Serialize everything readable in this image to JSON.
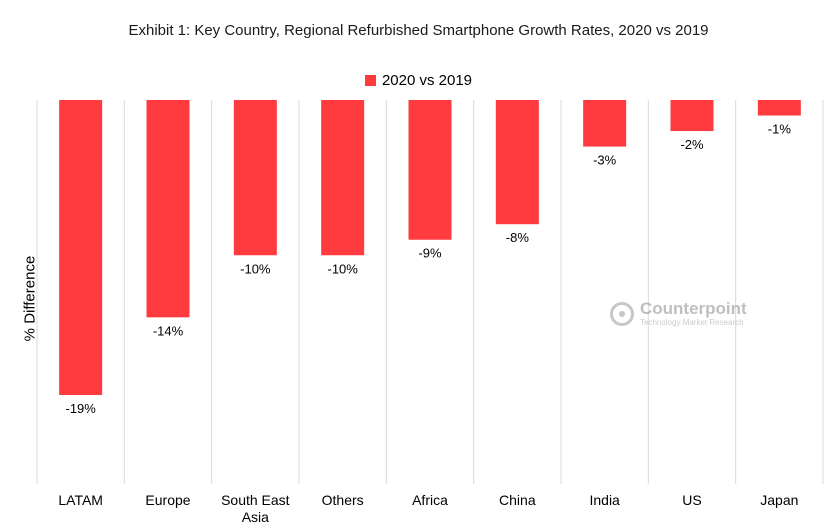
{
  "chart_data": {
    "type": "bar",
    "title": "Exhibit 1: Key Country, Regional Refurbished Smartphone Growth Rates, 2020 vs 2019",
    "ylabel": "% Difference",
    "xlabel": "",
    "legend_position": "top-center",
    "grid": "vertical-separators",
    "ylim": [
      -26,
      0
    ],
    "categories": [
      "LATAM",
      "Europe",
      "South East Asia",
      "Others",
      "Africa",
      "China",
      "India",
      "US",
      "Japan"
    ],
    "category_lines": [
      [
        "LATAM"
      ],
      [
        "Europe"
      ],
      [
        "South East",
        "Asia"
      ],
      [
        "Others"
      ],
      [
        "Africa"
      ],
      [
        "China"
      ],
      [
        "India"
      ],
      [
        "US"
      ],
      [
        "Japan"
      ]
    ],
    "series": [
      {
        "name": "2020 vs 2019",
        "color": "#ff3b3f",
        "values": [
          -19,
          -14,
          -10,
          -10,
          -9,
          -8,
          -3,
          -2,
          -1
        ],
        "labels": [
          "-19%",
          "-14%",
          "-10%",
          "-10%",
          "-9%",
          "-8%",
          "-3%",
          "-2%",
          "-1%"
        ]
      }
    ]
  },
  "watermark": {
    "brand": "Counterpoint",
    "tagline": "Technology Market Research"
  }
}
